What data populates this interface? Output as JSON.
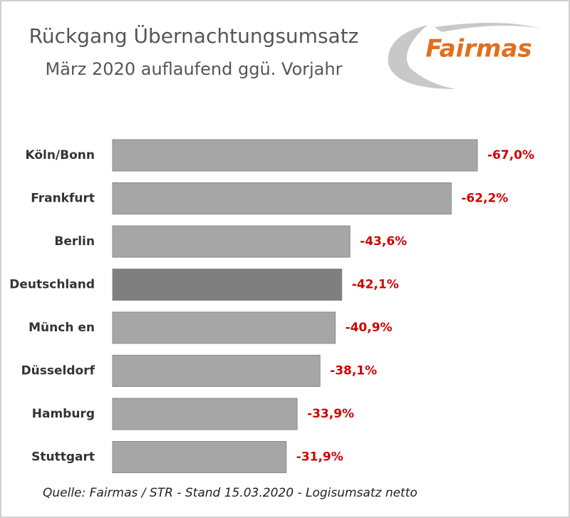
{
  "chart_data": {
    "type": "bar",
    "title": "Rückgang Übernachtungsumsatz",
    "subtitle": "März 2020 auflaufend ggü. Vorjahr",
    "logo": "Fairmas",
    "source": "Quelle: Fairmas / STR - Stand  15.03.2020 - Logisumsatz netto",
    "categories": [
      "Köln/Bonn",
      "Frankfurt",
      "Berlin",
      "Deutschland",
      "Münch en",
      "Düsseldorf",
      "Hamburg",
      "Stuttgart"
    ],
    "values": [
      -67.0,
      -62.2,
      -43.6,
      -42.1,
      -40.9,
      -38.1,
      -33.9,
      -31.9
    ],
    "value_labels": [
      "-67,0%",
      "-62,2%",
      "-43,6%",
      "-42,1%",
      "-40,9%",
      "-38,1%",
      "-33,9%",
      "-31,9%"
    ],
    "colors": [
      "#a6a6a6",
      "#a6a6a6",
      "#a6a6a6",
      "#7f7f7f",
      "#a6a6a6",
      "#a6a6a6",
      "#a6a6a6",
      "#a6a6a6"
    ],
    "label_color": "#d00000"
  }
}
